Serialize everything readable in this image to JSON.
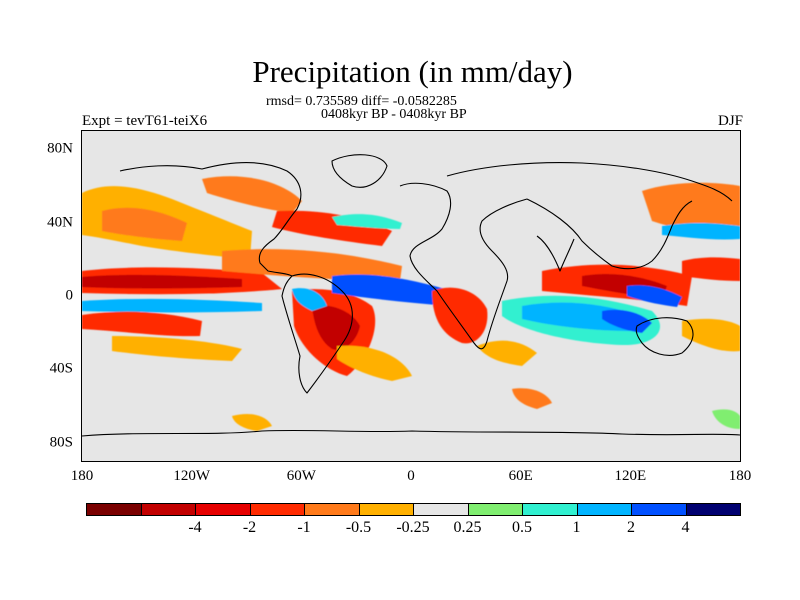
{
  "title": "Precipitation (in mm/day)",
  "stats": "rmsd= 0.735589 diff= -0.0582285",
  "period": "0408kyr BP - 0408kyr BP",
  "expt": "Expt = tevT61-teiX6",
  "season": "DJF",
  "map": {
    "lat_labels": [
      {
        "text": "80N",
        "lat": 80
      },
      {
        "text": "40N",
        "lat": 40
      },
      {
        "text": "0",
        "lat": 0
      },
      {
        "text": "40S",
        "lat": -40
      },
      {
        "text": "80S",
        "lat": -80
      }
    ],
    "lon_labels": [
      {
        "text": "180",
        "lon": -180
      },
      {
        "text": "120W",
        "lon": -120
      },
      {
        "text": "60W",
        "lon": -60
      },
      {
        "text": "0",
        "lon": 0
      },
      {
        "text": "60E",
        "lon": 60
      },
      {
        "text": "120E",
        "lon": 120
      },
      {
        "text": "180",
        "lon": 180
      }
    ],
    "lat_range": [
      -90,
      90
    ],
    "lon_range": [
      -180,
      180
    ]
  },
  "colorbar": {
    "colors": [
      "#7a0000",
      "#c20000",
      "#e60000",
      "#ff2a00",
      "#ff7a1a",
      "#ffb000",
      "#e6e6e6",
      "#80ee70",
      "#30f0d0",
      "#00b4ff",
      "#0050ff",
      "#000070"
    ],
    "labels": [
      "-4",
      "-2",
      "-1",
      "-0.5",
      "-0.25",
      "0.25",
      "0.5",
      "1",
      "2",
      "4"
    ],
    "label_boundaries": [
      2,
      3,
      4,
      5,
      6,
      7,
      8,
      9,
      10,
      11
    ]
  }
}
